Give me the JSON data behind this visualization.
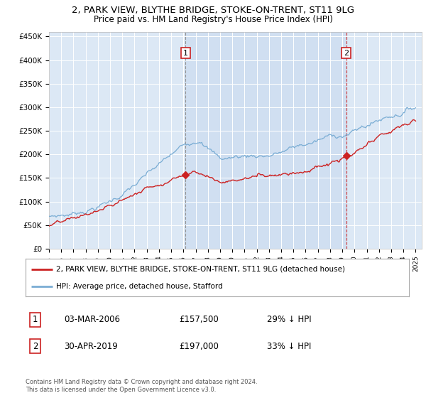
{
  "title": "2, PARK VIEW, BLYTHE BRIDGE, STOKE-ON-TRENT, ST11 9LG",
  "subtitle": "Price paid vs. HM Land Registry's House Price Index (HPI)",
  "legend_label_red": "2, PARK VIEW, BLYTHE BRIDGE, STOKE-ON-TRENT, ST11 9LG (detached house)",
  "legend_label_blue": "HPI: Average price, detached house, Stafford",
  "annotation1_date": "03-MAR-2006",
  "annotation1_price": "£157,500",
  "annotation1_hpi": "29% ↓ HPI",
  "annotation2_date": "30-APR-2019",
  "annotation2_price": "£197,000",
  "annotation2_hpi": "33% ↓ HPI",
  "footer": "Contains HM Land Registry data © Crown copyright and database right 2024.\nThis data is licensed under the Open Government Licence v3.0.",
  "ylim": [
    0,
    460000
  ],
  "yticks": [
    0,
    50000,
    100000,
    150000,
    200000,
    250000,
    300000,
    350000,
    400000,
    450000
  ],
  "sale1_year": 2006.17,
  "sale1_price": 157500,
  "sale2_year": 2019.33,
  "sale2_price": 197000,
  "plot_bg_color": "#dce8f5",
  "shade_color": "#c5d8ee"
}
